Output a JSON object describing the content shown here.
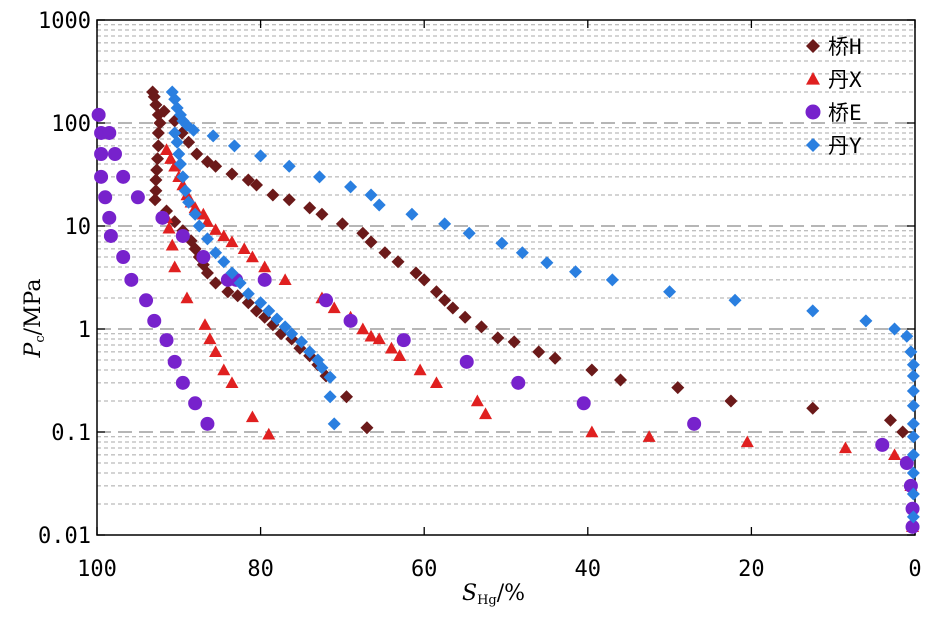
{
  "chart_data": {
    "type": "scatter",
    "x_axis": {
      "label_main": "S",
      "label_sub": "Hg",
      "label_suffix": "/%",
      "min": 0,
      "max": 100,
      "reversed": true,
      "ticks": [
        100,
        80,
        60,
        40,
        20,
        0
      ],
      "tick_labels": [
        "100",
        "80",
        "60",
        "40",
        "20",
        "0"
      ]
    },
    "y_axis": {
      "label_main": "P",
      "label_sub": "c",
      "label_suffix": "/MPa",
      "scale": "log",
      "min": 0.01,
      "max": 1000,
      "ticks": [
        0.01,
        0.1,
        1,
        10,
        100,
        1000
      ],
      "tick_labels": [
        "0.01",
        "0.1",
        "1",
        "10",
        "100",
        "1000"
      ]
    },
    "grid": {
      "major": "dashed",
      "minor": "dotted",
      "vertical": false
    },
    "legend": {
      "position": "top-right"
    },
    "series": [
      {
        "name": "桥H",
        "marker": "diamond",
        "color": "#6b1a1a",
        "points": [
          [
            93.2,
            200
          ],
          [
            93,
            180
          ],
          [
            92.8,
            150
          ],
          [
            92.5,
            120
          ],
          [
            92.3,
            100
          ],
          [
            92.5,
            80
          ],
          [
            92.5,
            60
          ],
          [
            92.6,
            45
          ],
          [
            92.7,
            35
          ],
          [
            92.8,
            28
          ],
          [
            92.8,
            22
          ],
          [
            92.9,
            18
          ],
          [
            91.5,
            14
          ],
          [
            90.5,
            11
          ],
          [
            89.5,
            9
          ],
          [
            88.5,
            7.2
          ],
          [
            88,
            6
          ],
          [
            87.5,
            5
          ],
          [
            87,
            4.2
          ],
          [
            86.5,
            3.5
          ],
          [
            85.5,
            2.8
          ],
          [
            84,
            2.3
          ],
          [
            82.8,
            2.1
          ],
          [
            81.5,
            1.8
          ],
          [
            80.5,
            1.5
          ],
          [
            79.5,
            1.3
          ],
          [
            78.5,
            1.1
          ],
          [
            77.5,
            0.9
          ],
          [
            76.2,
            0.8
          ],
          [
            75.2,
            0.65
          ],
          [
            74,
            0.55
          ],
          [
            73,
            0.45
          ],
          [
            72,
            0.35
          ],
          [
            69.5,
            0.22
          ],
          [
            67,
            0.11
          ],
          [
            91.8,
            130
          ],
          [
            90.5,
            105
          ],
          [
            89.6,
            80
          ],
          [
            88.8,
            65
          ],
          [
            87.8,
            50
          ],
          [
            86.5,
            42
          ],
          [
            85.5,
            38
          ],
          [
            83.5,
            32
          ],
          [
            81.5,
            28
          ],
          [
            80.5,
            25
          ],
          [
            78.5,
            20
          ],
          [
            76.5,
            18
          ],
          [
            74,
            15
          ],
          [
            72.5,
            13
          ],
          [
            70,
            10.5
          ],
          [
            67.5,
            8.5
          ],
          [
            66.5,
            7
          ],
          [
            64.8,
            5.5
          ],
          [
            63.2,
            4.5
          ],
          [
            61,
            3.5
          ],
          [
            60,
            3
          ],
          [
            58.5,
            2.3
          ],
          [
            57.5,
            1.9
          ],
          [
            56.5,
            1.6
          ],
          [
            55,
            1.3
          ],
          [
            53,
            1.05
          ],
          [
            51,
            0.82
          ],
          [
            49,
            0.75
          ],
          [
            46,
            0.6
          ],
          [
            44,
            0.52
          ],
          [
            39.5,
            0.4
          ],
          [
            36,
            0.32
          ],
          [
            29,
            0.27
          ],
          [
            22.5,
            0.2
          ],
          [
            12.5,
            0.17
          ],
          [
            3,
            0.13
          ],
          [
            1.5,
            0.1
          ]
        ]
      },
      {
        "name": "丹X",
        "marker": "triangle",
        "color": "#e02020",
        "points": [
          [
            91.5,
            55
          ],
          [
            91,
            45
          ],
          [
            90.5,
            38
          ],
          [
            90,
            30
          ],
          [
            89.5,
            25
          ],
          [
            89,
            20
          ],
          [
            88.5,
            17
          ],
          [
            88,
            15
          ],
          [
            87,
            13
          ],
          [
            86.5,
            11
          ],
          [
            85.5,
            9.2
          ],
          [
            84.5,
            8
          ],
          [
            83.5,
            7
          ],
          [
            82,
            6
          ],
          [
            81,
            5
          ],
          [
            79.5,
            4
          ],
          [
            77,
            3
          ],
          [
            72.5,
            2
          ],
          [
            71,
            1.6
          ],
          [
            69,
            1.3
          ],
          [
            67.5,
            1
          ],
          [
            66.5,
            0.85
          ],
          [
            65.5,
            0.8
          ],
          [
            64,
            0.65
          ],
          [
            63,
            0.55
          ],
          [
            60.5,
            0.4
          ],
          [
            58.5,
            0.3
          ],
          [
            53.5,
            0.2
          ],
          [
            52.5,
            0.15
          ],
          [
            39.5,
            0.1
          ],
          [
            32.5,
            0.09
          ],
          [
            20.5,
            0.08
          ],
          [
            8.5,
            0.07
          ],
          [
            2.5,
            0.06
          ],
          [
            0.5,
            0.03
          ],
          [
            0.3,
            0.012
          ],
          [
            91.5,
            12
          ],
          [
            91.2,
            9.5
          ],
          [
            90.8,
            6.5
          ],
          [
            90.5,
            4
          ],
          [
            89,
            2
          ],
          [
            86.8,
            1.1
          ],
          [
            86.2,
            0.8
          ],
          [
            85.5,
            0.6
          ],
          [
            84.5,
            0.4
          ],
          [
            83.5,
            0.3
          ],
          [
            81,
            0.14
          ],
          [
            79,
            0.095
          ]
        ]
      },
      {
        "name": "桥E",
        "marker": "circle",
        "color": "#7722cc",
        "points": [
          [
            99.8,
            120
          ],
          [
            99.5,
            80
          ],
          [
            98.5,
            80
          ],
          [
            99.5,
            50
          ],
          [
            97.8,
            50
          ],
          [
            99.5,
            30
          ],
          [
            96.8,
            30
          ],
          [
            99,
            19
          ],
          [
            95,
            19
          ],
          [
            98.5,
            12
          ],
          [
            98.3,
            8
          ],
          [
            96.8,
            5
          ],
          [
            95.8,
            3
          ],
          [
            94,
            1.9
          ],
          [
            93,
            1.2
          ],
          [
            91.5,
            0.78
          ],
          [
            90.5,
            0.48
          ],
          [
            89.5,
            0.3
          ],
          [
            88,
            0.19
          ],
          [
            86.5,
            0.12
          ],
          [
            92,
            12
          ],
          [
            89.5,
            8
          ],
          [
            87,
            5
          ],
          [
            84,
            3
          ],
          [
            83,
            3
          ],
          [
            79.5,
            3
          ],
          [
            72,
            1.9
          ],
          [
            69,
            1.2
          ],
          [
            62.5,
            0.78
          ],
          [
            54.8,
            0.48
          ],
          [
            48.5,
            0.3
          ],
          [
            40.5,
            0.19
          ],
          [
            27,
            0.12
          ],
          [
            4,
            0.075
          ],
          [
            1,
            0.05
          ],
          [
            0.5,
            0.03
          ],
          [
            0.3,
            0.018
          ],
          [
            0.3,
            0.012
          ]
        ]
      },
      {
        "name": "丹Y",
        "marker": "diamond",
        "color": "#2a7fe0",
        "points": [
          [
            90.8,
            200
          ],
          [
            90.5,
            170
          ],
          [
            90.2,
            140
          ],
          [
            89.8,
            120
          ],
          [
            89.5,
            105
          ],
          [
            89,
            95
          ],
          [
            88.2,
            85
          ],
          [
            85.8,
            75
          ],
          [
            83.2,
            60
          ],
          [
            80,
            48
          ],
          [
            76.5,
            38
          ],
          [
            72.8,
            30
          ],
          [
            69,
            24
          ],
          [
            66.5,
            20
          ],
          [
            65.5,
            16
          ],
          [
            61.5,
            13
          ],
          [
            57.5,
            10.5
          ],
          [
            54.5,
            8.5
          ],
          [
            50.5,
            6.8
          ],
          [
            48,
            5.5
          ],
          [
            45,
            4.4
          ],
          [
            41.5,
            3.6
          ],
          [
            37,
            3
          ],
          [
            30,
            2.3
          ],
          [
            22,
            1.9
          ],
          [
            12.5,
            1.5
          ],
          [
            6,
            1.2
          ],
          [
            2.5,
            1
          ],
          [
            1,
            0.85
          ],
          [
            0.5,
            0.6
          ],
          [
            0.2,
            0.45
          ],
          [
            0.2,
            0.35
          ],
          [
            0.2,
            0.25
          ],
          [
            0.2,
            0.18
          ],
          [
            0.2,
            0.12
          ],
          [
            0.2,
            0.09
          ],
          [
            0.2,
            0.06
          ],
          [
            0.2,
            0.04
          ],
          [
            0.2,
            0.025
          ],
          [
            0.2,
            0.015
          ],
          [
            90.5,
            80
          ],
          [
            90.2,
            65
          ],
          [
            90,
            50
          ],
          [
            89.8,
            40
          ],
          [
            89.5,
            30
          ],
          [
            89.2,
            22
          ],
          [
            88.8,
            17
          ],
          [
            88,
            13
          ],
          [
            87.5,
            10
          ],
          [
            86.5,
            7.5
          ],
          [
            85.5,
            5.5
          ],
          [
            84.5,
            4.5
          ],
          [
            83.5,
            3.5
          ],
          [
            82.5,
            2.8
          ],
          [
            81.5,
            2.2
          ],
          [
            80,
            1.8
          ],
          [
            79,
            1.5
          ],
          [
            78,
            1.25
          ],
          [
            77,
            1.05
          ],
          [
            76.2,
            0.9
          ],
          [
            75,
            0.75
          ],
          [
            74,
            0.6
          ],
          [
            73,
            0.5
          ],
          [
            72.5,
            0.42
          ],
          [
            71.5,
            0.34
          ],
          [
            71.5,
            0.22
          ],
          [
            71,
            0.12
          ]
        ]
      }
    ]
  }
}
